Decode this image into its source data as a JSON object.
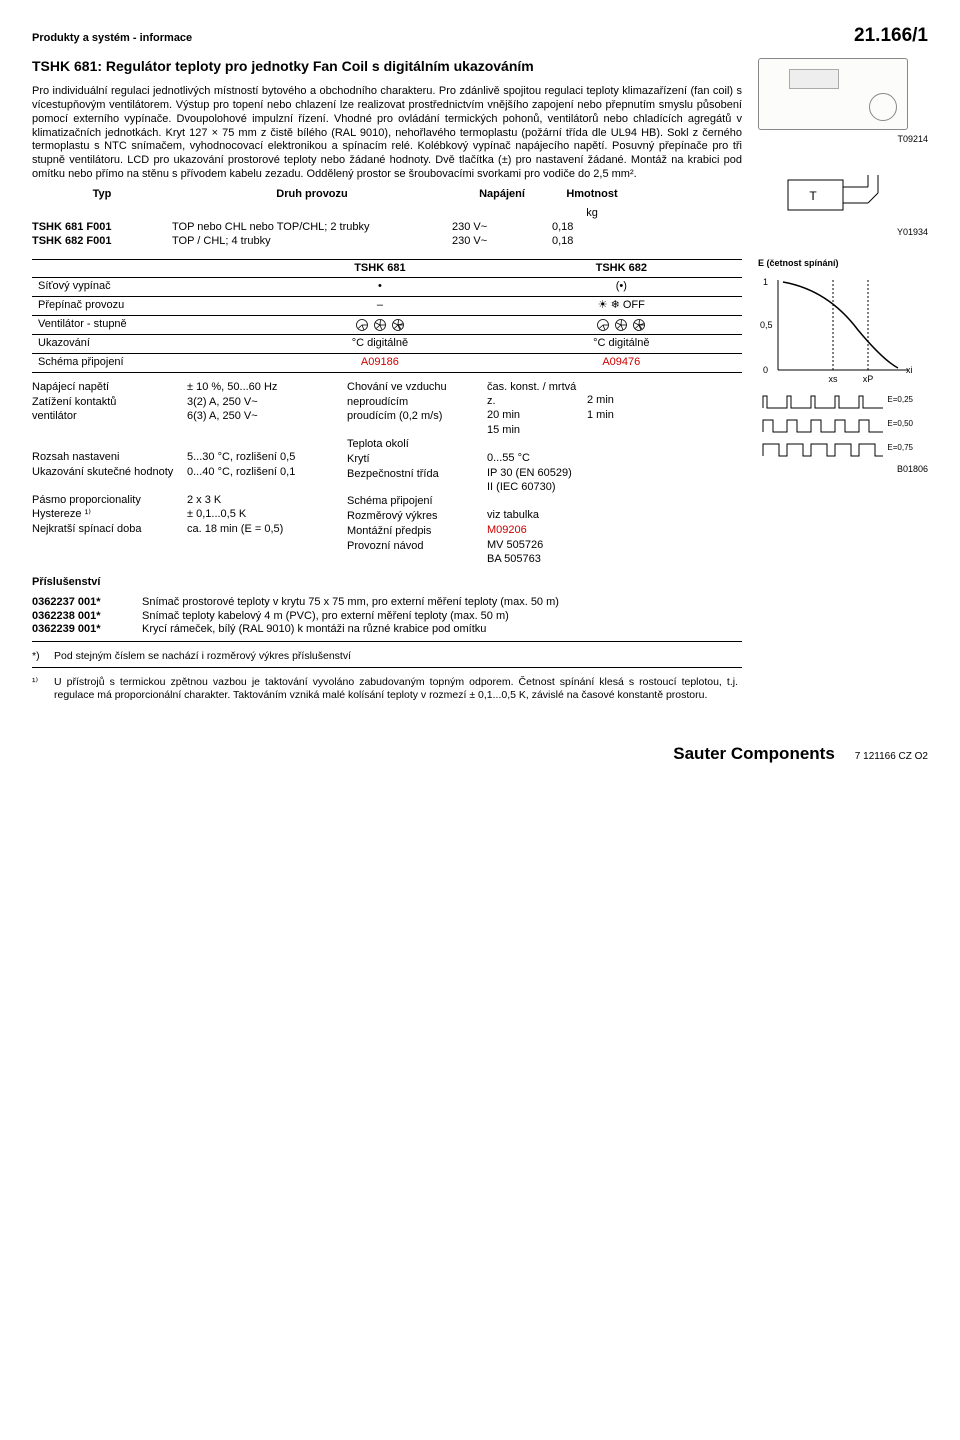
{
  "header": {
    "left": "Produkty a systém - informace",
    "right": "21.166/1"
  },
  "title": "TSHK 681: Regulátor teploty pro jednotky Fan Coil s digitálním ukazováním",
  "description": "Pro individuální regulaci jednotlivých místností bytového a obchodního charakteru. Pro zdánlivě spojitou regulaci teploty klimazařízení (fan coil) s vícestupňovým ventilátorem. Výstup pro topení nebo chlazení lze realizovat prostřednictvím vnějšího zapojení nebo přepnutím smyslu působení pomocí externího vypínače. Dvoupolohové impulzní řízení. Vhodné pro ovládání termických pohonů, ventilátorů nebo chladících agregátů v klimatizačních jednotkách. Kryt 127 × 75 mm z čistě bílého (RAL 9010), nehořlavého termoplastu (požární třída dle UL94 HB). Sokl z černého termoplastu s NTC snímačem, vyhodnocovací elektronikou a spínacím relé. Kolébkový vypínač napájecího napětí. Posuvný přepínače pro tři stupně ventilátoru. LCD pro ukazování prostorové teploty nebo žádané hodnoty. Dvě tlačítka (±) pro nastavení žádané. Montáž na krabici pod omítku nebo přímo na stěnu s přívodem kabelu zezadu. Oddělený prostor se šroubovacími svorkami pro vodiče do 2,5 mm².",
  "table_head": {
    "c1": "Typ",
    "c2": "Druh provozu",
    "c3": "Napájení",
    "c4": "Hmotnost",
    "c4b": "kg"
  },
  "products": [
    {
      "typ": "TSHK 681 F001",
      "mode": "TOP nebo CHL nebo TOP/CHL; 2 trubky",
      "power": "230 V~",
      "weight": "0,18"
    },
    {
      "typ": "TSHK 682 F001",
      "mode": "TOP / CHL; 4 trubky",
      "power": "230 V~",
      "weight": "0,18"
    }
  ],
  "feat_head": {
    "c0": "",
    "c1": "TSHK 681",
    "c2": "TSHK 682"
  },
  "feat": [
    {
      "label": "Síťový vypínač",
      "v1": "•",
      "v2": "(•)"
    },
    {
      "label": "Přepínač provozu",
      "v1": "–",
      "v2": "☀ ❄ OFF"
    },
    {
      "label": "Ventilátor - stupně",
      "v1": "fan",
      "v2": "fan"
    },
    {
      "label": "Ukazování",
      "v1": "°C digitálně",
      "v2": "°C digitálně"
    },
    {
      "label": "Schéma připojení",
      "v1": "A09186",
      "v2": "A09476",
      "red": true
    }
  ],
  "specs": {
    "l1": [
      "Napájecí napětí",
      "Zatížení kontaktů",
      "  ventilátor",
      "",
      "",
      "Rozsah nastaveni",
      "Ukazování skutečné hodnoty",
      "",
      "Pásmo proporcionality",
      "Hystereze ¹⁾",
      "Nejkratší spínací doba"
    ],
    "l2": [
      "± 10 %, 50...60 Hz",
      "3(2) A, 250 V~",
      "6(3) A, 250 V~",
      "",
      "",
      "5...30 °C, rozlišení 0,5",
      "0...40 °C, rozlišení 0,1",
      "",
      "2 x 3 K",
      "± 0,1...0,5 K",
      "ca. 18 min (E = 0,5)"
    ],
    "r1": [
      "Chování ve vzduchu",
      "  neproudícím",
      "  proudícím (0,2 m/s)",
      "",
      "Teplota okolí",
      "Krytí",
      "Bezpečnostní třída",
      "",
      "Schéma připojení",
      "Rozměrový výkres",
      "Montážní předpis",
      "Provozní návod"
    ],
    "r2": [
      "čas. konst. / mrtvá z.",
      "20 min",
      "15 min",
      "",
      "0...55 °C",
      "IP 30 (EN 60529)",
      "II (IEC 60730)",
      "",
      "viz tabulka",
      "M09206",
      "MV 505726",
      "BA 505763"
    ],
    "r2_red": [
      false,
      false,
      false,
      false,
      false,
      false,
      false,
      false,
      false,
      true,
      false,
      false
    ],
    "r3": [
      "",
      "2 min",
      "1 min",
      "",
      "",
      "",
      "",
      "",
      "",
      "",
      "",
      ""
    ]
  },
  "acc_title": "Příslušenství",
  "accessories": [
    {
      "code": "0362237 001*",
      "desc": "Snímač prostorové teploty v krytu 75 x 75 mm, pro externí měření teploty (max. 50 m)"
    },
    {
      "code": "0362238 001*",
      "desc": "Snímač teploty kabelový 4 m (PVC), pro externí měření teploty (max. 50 m)"
    },
    {
      "code": "0362239 001*",
      "desc": "Krycí rámeček, bílý (RAL 9010) k montáži na různé krabice pod omítku"
    }
  ],
  "notes": [
    {
      "num": "*)",
      "txt": "Pod stejným číslem se nachází i rozměrový výkres příslušenství"
    },
    {
      "num": "¹⁾",
      "txt": "U přístrojů s termickou zpětnou vazbou je taktování vyvoláno zabudovaným topným odporem. Četnost spínání klesá s rostoucí teplotou, t.j. regulace má proporcionální charakter. Taktováním vzniká malé kolísání teploty v rozmezí ± 0,1...0,5 K, závislé na časové konstantě prostoru."
    }
  ],
  "side": {
    "img1": "T09214",
    "symbol": "Y01934",
    "chart_title": "E (četnost spínání)",
    "chart_y": [
      "1",
      "0,5",
      "0"
    ],
    "chart_x": [
      "xs",
      "xP",
      "xi"
    ],
    "pulses": [
      "E=0,25",
      "E=0,50",
      "E=0,75"
    ],
    "chart_code": "B01806"
  },
  "footer": {
    "brand": "Sauter Components",
    "code": "7 121166 CZ O2"
  }
}
